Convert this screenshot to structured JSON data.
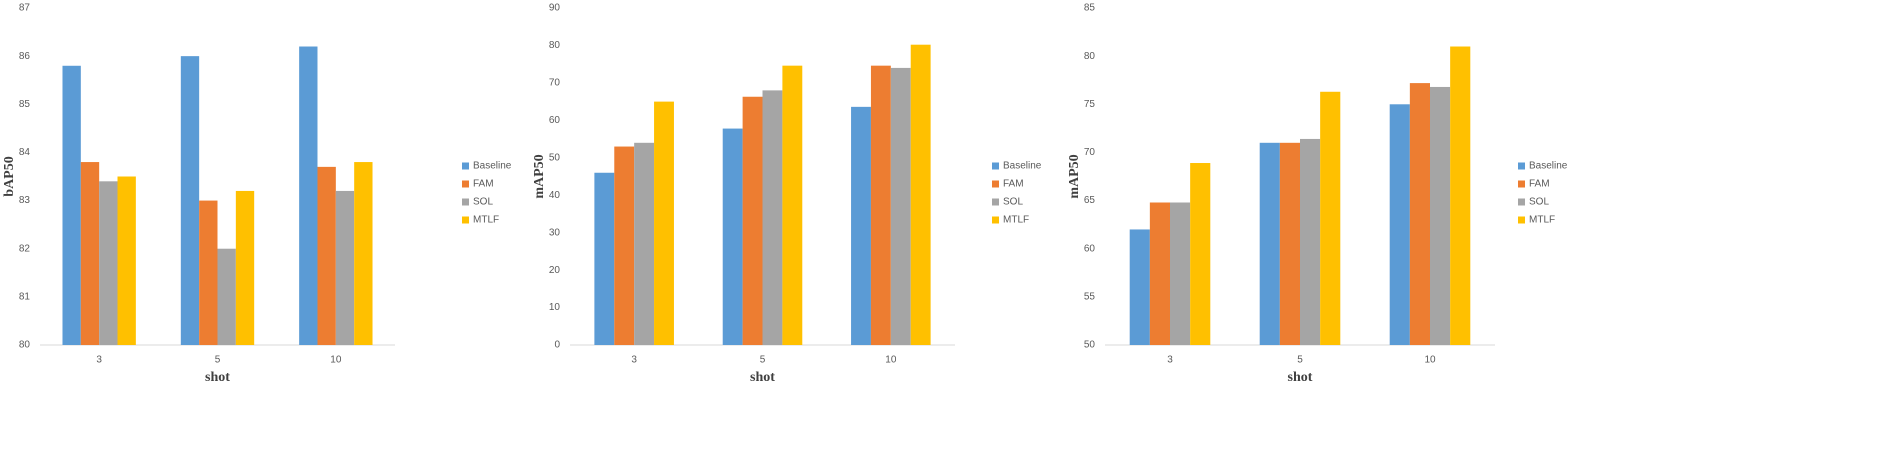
{
  "chart_data": [
    {
      "type": "bar",
      "x_label": "shot",
      "y_label": "bAP50",
      "categories": [
        "3",
        "5",
        "10"
      ],
      "series": [
        {
          "name": "Baseline",
          "color": "#5b9bd5",
          "values": [
            85.8,
            86.0,
            86.2
          ]
        },
        {
          "name": "FAM",
          "color": "#ed7d31",
          "values": [
            83.8,
            83.0,
            83.7
          ]
        },
        {
          "name": "SOL",
          "color": "#a5a5a5",
          "values": [
            83.4,
            82.0,
            83.2
          ]
        },
        {
          "name": "MTLF",
          "color": "#ffc000",
          "values": [
            83.5,
            83.2,
            83.8
          ]
        }
      ],
      "ylim": [
        80,
        87
      ],
      "yticks": [
        80,
        81,
        82,
        83,
        84,
        85,
        86,
        87
      ]
    },
    {
      "type": "bar",
      "x_label": "shot",
      "y_label": "mAP50",
      "categories": [
        "3",
        "5",
        "10"
      ],
      "series": [
        {
          "name": "Baseline",
          "color": "#5b9bd5",
          "values": [
            46,
            57.8,
            63.6
          ]
        },
        {
          "name": "FAM",
          "color": "#ed7d31",
          "values": [
            53,
            66.3,
            74.6
          ]
        },
        {
          "name": "SOL",
          "color": "#a5a5a5",
          "values": [
            54,
            68,
            74
          ]
        },
        {
          "name": "MTLF",
          "color": "#ffc000",
          "values": [
            65,
            74.6,
            80.2
          ]
        }
      ],
      "ylim": [
        0,
        90
      ],
      "yticks": [
        0,
        10,
        20,
        30,
        40,
        50,
        60,
        70,
        80,
        90
      ]
    },
    {
      "type": "bar",
      "x_label": "shot",
      "y_label": "mAP50",
      "categories": [
        "3",
        "5",
        "10"
      ],
      "series": [
        {
          "name": "Baseline",
          "color": "#5b9bd5",
          "values": [
            62,
            71,
            75
          ]
        },
        {
          "name": "FAM",
          "color": "#ed7d31",
          "values": [
            64.8,
            71,
            77.2
          ]
        },
        {
          "name": "SOL",
          "color": "#a5a5a5",
          "values": [
            64.8,
            71.4,
            76.8
          ]
        },
        {
          "name": "MTLF",
          "color": "#ffc000",
          "values": [
            68.9,
            76.3,
            81
          ]
        }
      ],
      "ylim": [
        50,
        85
      ],
      "yticks": [
        50,
        55,
        60,
        65,
        70,
        75,
        80,
        85
      ]
    }
  ]
}
